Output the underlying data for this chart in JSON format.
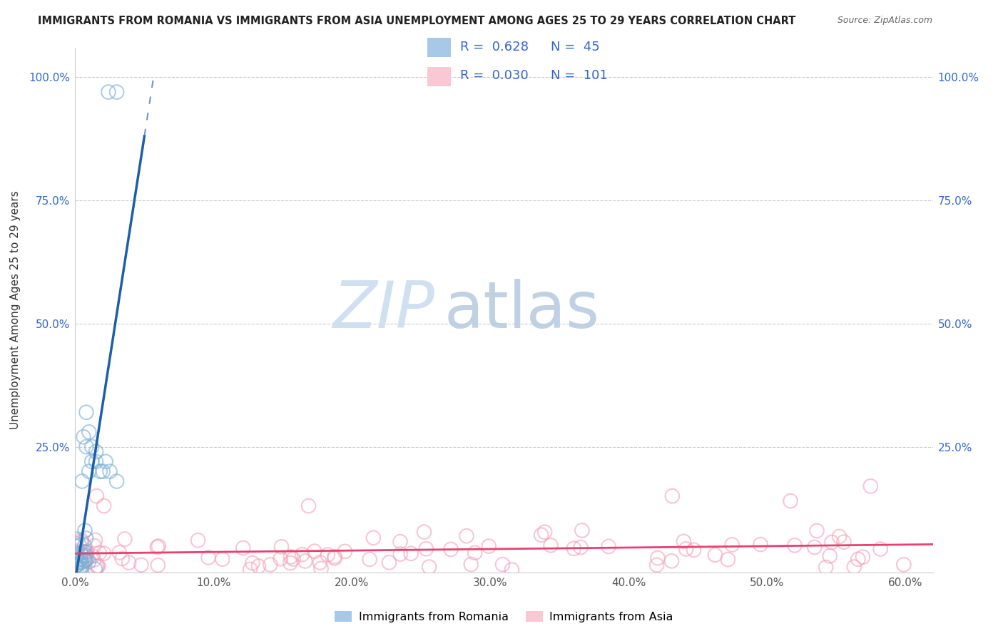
{
  "title": "IMMIGRANTS FROM ROMANIA VS IMMIGRANTS FROM ASIA UNEMPLOYMENT AMONG AGES 25 TO 29 YEARS CORRELATION CHART",
  "source": "Source: ZipAtlas.com",
  "ylabel": "Unemployment Among Ages 25 to 29 years",
  "xlim": [
    0.0,
    0.62
  ],
  "ylim": [
    -0.005,
    1.06
  ],
  "R_romania": 0.628,
  "N_romania": 45,
  "R_asia": 0.03,
  "N_asia": 101,
  "romania_fill": "#a8c8e8",
  "romania_edge": "#7bafd4",
  "asia_fill": "#f9c8d4",
  "asia_edge": "#f4a0b8",
  "regression_romania_color": "#1a5fa8",
  "regression_asia_color": "#e84070",
  "legend_label_romania": "Immigrants from Romania",
  "legend_label_asia": "Immigrants from Asia",
  "watermark_zip": "ZIP",
  "watermark_atlas": "atlas",
  "watermark_color": "#c5d8ea",
  "title_fontsize": 10.5,
  "source_fontsize": 9,
  "legend_fontsize": 13,
  "tick_color_y": "#3366cc",
  "tick_color_x": "#555555",
  "grid_color": "#cccccc"
}
